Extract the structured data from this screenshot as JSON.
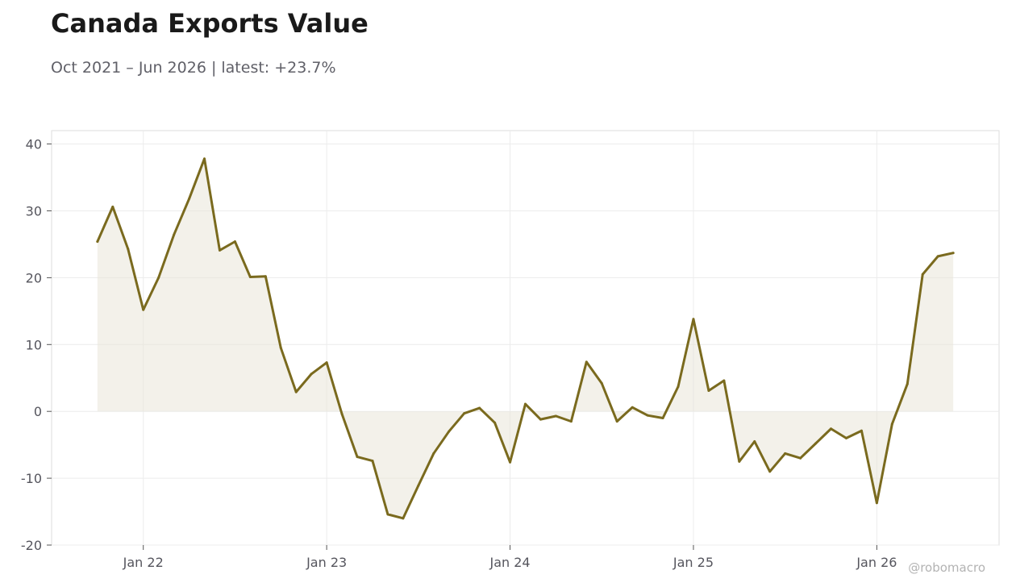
{
  "title": "Canada Exports Value",
  "subtitle": "Oct 2021 – Jun 2026 | latest: +23.7%",
  "watermark": "@robomacro",
  "chart_data": {
    "type": "area",
    "title": "Canada Exports Value",
    "subtitle": "Oct 2021 – Jun 2026 | latest: +23.7%",
    "xlabel": "",
    "ylabel": "",
    "ylim": [
      -20,
      42
    ],
    "yticks": [
      -20,
      -10,
      0,
      10,
      20,
      30,
      40
    ],
    "xticks": [
      {
        "date": "2022-01",
        "label": "Jan 22"
      },
      {
        "date": "2023-01",
        "label": "Jan 23"
      },
      {
        "date": "2024-01",
        "label": "Jan 24"
      },
      {
        "date": "2025-01",
        "label": "Jan 25"
      },
      {
        "date": "2026-01",
        "label": "Jan 26"
      }
    ],
    "xlim": [
      "2021-07",
      "2026-09"
    ],
    "grid": true,
    "legend": "none",
    "line_color": "#7a6a1e",
    "fill_color": "#e8e4d6",
    "series": [
      {
        "x": [
          "2021-10",
          "2021-11",
          "2021-12",
          "2022-01",
          "2022-02",
          "2022-03",
          "2022-04",
          "2022-05",
          "2022-06",
          "2022-07",
          "2022-08",
          "2022-09",
          "2022-10",
          "2022-11",
          "2022-12",
          "2023-01",
          "2023-02",
          "2023-03",
          "2023-04",
          "2023-05",
          "2023-06",
          "2023-07",
          "2023-08",
          "2023-09",
          "2023-10",
          "2023-11",
          "2023-12",
          "2024-01",
          "2024-02",
          "2024-03",
          "2024-04",
          "2024-05",
          "2024-06",
          "2024-07",
          "2024-08",
          "2024-09",
          "2024-10",
          "2024-11",
          "2024-12",
          "2025-01",
          "2025-02",
          "2025-03",
          "2025-04",
          "2025-05",
          "2025-06",
          "2025-07",
          "2025-08",
          "2025-09",
          "2025-10",
          "2025-11",
          "2025-12",
          "2026-01",
          "2026-02",
          "2026-03",
          "2026-04",
          "2026-05",
          "2026-06"
        ],
        "values": [
          25.4,
          30.6,
          24.3,
          15.2,
          20.0,
          26.4,
          31.8,
          37.8,
          24.1,
          25.4,
          20.1,
          20.2,
          9.5,
          2.9,
          5.6,
          7.3,
          -0.4,
          -6.8,
          -7.4,
          -15.4,
          -16.0,
          -11.1,
          -6.3,
          -3.0,
          -0.3,
          0.5,
          -1.7,
          -7.6,
          1.1,
          -1.2,
          -0.7,
          -1.5,
          7.4,
          4.2,
          -1.5,
          0.6,
          -0.6,
          -1.0,
          3.7,
          13.8,
          3.1,
          4.6,
          -7.5,
          -4.5,
          -9.0,
          -6.3,
          -7.0,
          -4.8,
          -2.6,
          -4.0,
          -2.9,
          -13.7,
          -1.9,
          4.1,
          20.5,
          23.2,
          23.7
        ]
      }
    ]
  }
}
